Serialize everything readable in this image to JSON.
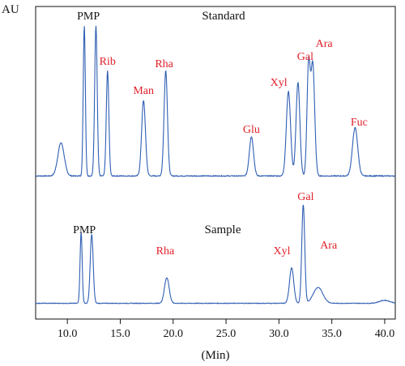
{
  "chart_data": {
    "type": "line",
    "ylabel": "AU",
    "xlabel": "(Min)",
    "xlim": [
      7.0,
      41.0
    ],
    "xticks": [
      "10.0",
      "15.0",
      "20.0",
      "25.0",
      "30.0",
      "35.0",
      "40.0"
    ],
    "line_color": "#2f5fb3",
    "label_color": "#e0202a",
    "panels": [
      {
        "name": "Standard",
        "baseline": 0.02,
        "peaks": [
          {
            "label": "",
            "x": 9.4,
            "height": 0.22,
            "width": 0.3
          },
          {
            "label": "PMP",
            "x": 11.6,
            "height": 1.0,
            "width": 0.1
          },
          {
            "label": "",
            "x": 12.7,
            "height": 1.0,
            "width": 0.12
          },
          {
            "label": "Rib",
            "x": 13.8,
            "height": 0.7,
            "width": 0.12
          },
          {
            "label": "Man",
            "x": 17.2,
            "height": 0.5,
            "width": 0.18
          },
          {
            "label": "Rha",
            "x": 19.3,
            "height": 0.7,
            "width": 0.16
          },
          {
            "label": "Glu",
            "x": 27.4,
            "height": 0.26,
            "width": 0.2
          },
          {
            "label": "Xyl",
            "x": 30.9,
            "height": 0.56,
            "width": 0.2
          },
          {
            "label": "",
            "x": 31.8,
            "height": 0.62,
            "width": 0.18
          },
          {
            "label": "Gal",
            "x": 32.8,
            "height": 0.72,
            "width": 0.15
          },
          {
            "label": "Ara",
            "x": 33.2,
            "height": 0.74,
            "width": 0.18
          },
          {
            "label": "Fuc",
            "x": 37.2,
            "height": 0.32,
            "width": 0.25
          }
        ]
      },
      {
        "name": "Sample",
        "baseline": 0.02,
        "peaks": [
          {
            "label": "PMP",
            "x": 11.3,
            "height": 0.72,
            "width": 0.1
          },
          {
            "label": "",
            "x": 12.3,
            "height": 0.7,
            "width": 0.14
          },
          {
            "label": "Rha",
            "x": 19.4,
            "height": 0.26,
            "width": 0.22
          },
          {
            "label": "Xyl",
            "x": 31.2,
            "height": 0.36,
            "width": 0.2
          },
          {
            "label": "Gal",
            "x": 32.3,
            "height": 1.0,
            "width": 0.14
          },
          {
            "label": "Ara",
            "x": 33.7,
            "height": 0.16,
            "width": 0.45
          },
          {
            "label": "",
            "x": 40.0,
            "height": 0.03,
            "width": 0.5
          }
        ]
      }
    ]
  }
}
